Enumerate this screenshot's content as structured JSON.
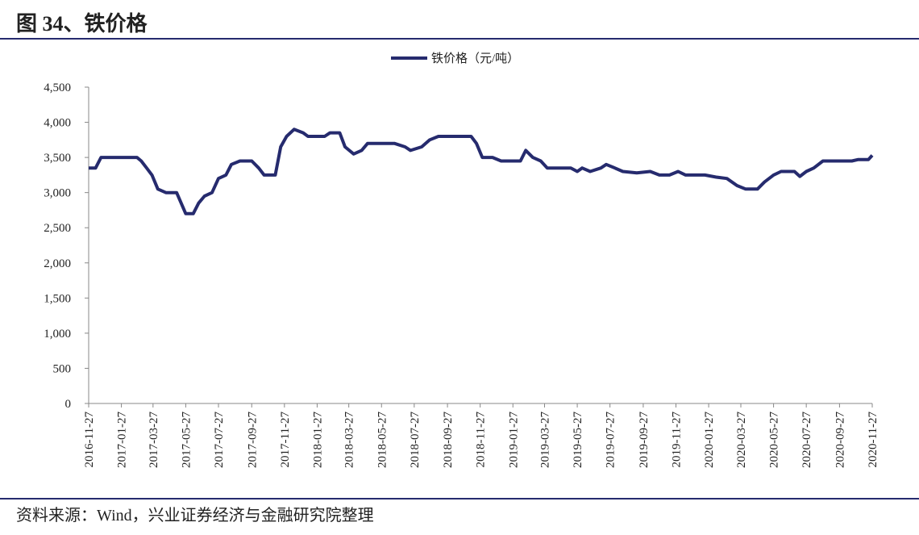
{
  "chart_data": {
    "type": "line",
    "title": "图 34、铁价格",
    "source": "资料来源：Wind，兴业证券经济与金融研究院整理",
    "legend": "top",
    "x": [
      "2016-11-27",
      "2016-12-10",
      "2016-12-20",
      "2017-01-10",
      "2017-02-10",
      "2017-02-25",
      "2017-03-05",
      "2017-03-15",
      "2017-03-25",
      "2017-04-05",
      "2017-04-20",
      "2017-05-10",
      "2017-05-27",
      "2017-06-10",
      "2017-06-20",
      "2017-07-01",
      "2017-07-15",
      "2017-07-27",
      "2017-08-10",
      "2017-08-20",
      "2017-09-05",
      "2017-09-27",
      "2017-10-10",
      "2017-10-20",
      "2017-11-10",
      "2017-11-20",
      "2017-12-01",
      "2017-12-15",
      "2018-01-01",
      "2018-01-10",
      "2018-02-10",
      "2018-02-20",
      "2018-03-10",
      "2018-03-20",
      "2018-04-05",
      "2018-04-20",
      "2018-05-01",
      "2018-05-27",
      "2018-06-20",
      "2018-07-10",
      "2018-07-20",
      "2018-08-10",
      "2018-08-25",
      "2018-09-10",
      "2018-10-27",
      "2018-11-10",
      "2018-11-20",
      "2018-12-01",
      "2018-12-20",
      "2019-01-05",
      "2019-02-10",
      "2019-02-20",
      "2019-03-05",
      "2019-03-20",
      "2019-04-01",
      "2019-05-15",
      "2019-05-27",
      "2019-06-05",
      "2019-06-20",
      "2019-07-10",
      "2019-07-20",
      "2019-08-05",
      "2019-08-20",
      "2019-09-15",
      "2019-10-10",
      "2019-10-27",
      "2019-11-15",
      "2019-12-01",
      "2019-12-15",
      "2020-01-20",
      "2020-02-10",
      "2020-03-01",
      "2020-03-20",
      "2020-04-05",
      "2020-04-27",
      "2020-05-10",
      "2020-05-27",
      "2020-06-10",
      "2020-07-05",
      "2020-07-15",
      "2020-07-27",
      "2020-08-10",
      "2020-08-27",
      "2020-10-20",
      "2020-11-01",
      "2020-11-20",
      "2020-11-27"
    ],
    "series": [
      {
        "name": "铁价格（元/吨）",
        "color": "#262b6e",
        "values": [
          3350,
          3350,
          3500,
          3500,
          3500,
          3500,
          3450,
          3350,
          3250,
          3050,
          3000,
          3000,
          2700,
          2700,
          2850,
          2950,
          3000,
          3200,
          3250,
          3400,
          3450,
          3450,
          3350,
          3250,
          3250,
          3650,
          3800,
          3900,
          3850,
          3800,
          3800,
          3850,
          3850,
          3650,
          3550,
          3600,
          3700,
          3700,
          3700,
          3650,
          3600,
          3650,
          3750,
          3800,
          3800,
          3800,
          3700,
          3500,
          3500,
          3450,
          3450,
          3600,
          3500,
          3450,
          3350,
          3350,
          3300,
          3350,
          3300,
          3350,
          3400,
          3350,
          3300,
          3280,
          3300,
          3250,
          3250,
          3300,
          3250,
          3250,
          3220,
          3200,
          3100,
          3050,
          3050,
          3150,
          3250,
          3300,
          3300,
          3230,
          3300,
          3350,
          3450,
          3450,
          3470,
          3470,
          3530
        ]
      }
    ],
    "xlim": [
      "2016-11-27",
      "2020-11-27"
    ],
    "xticks": [
      "2016-11-27",
      "2017-01-27",
      "2017-03-27",
      "2017-05-27",
      "2017-07-27",
      "2017-09-27",
      "2017-11-27",
      "2018-01-27",
      "2018-03-27",
      "2018-05-27",
      "2018-07-27",
      "2018-09-27",
      "2018-11-27",
      "2019-01-27",
      "2019-03-27",
      "2019-05-27",
      "2019-07-27",
      "2019-09-27",
      "2019-11-27",
      "2020-01-27",
      "2020-03-27",
      "2020-05-27",
      "2020-07-27",
      "2020-09-27",
      "2020-11-27"
    ],
    "ylim": [
      0,
      4500
    ],
    "yticks": [
      0,
      500,
      {
        "value": 1000,
        "label": "1,000"
      },
      {
        "value": 1500,
        "label": "1,500"
      },
      {
        "value": 2000,
        "label": "2,000"
      },
      {
        "value": 2500,
        "label": "2,500"
      },
      {
        "value": 3000,
        "label": "3,000"
      },
      {
        "value": 3500,
        "label": "3,500"
      },
      {
        "value": 4000,
        "label": "4,000"
      },
      {
        "value": 4500,
        "label": "4,500"
      }
    ]
  }
}
